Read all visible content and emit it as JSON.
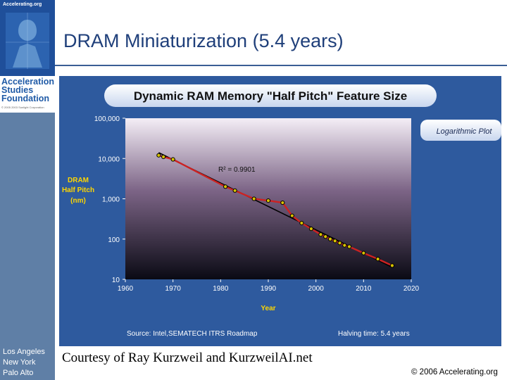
{
  "slide": {
    "title": "DRAM Miniaturization (5.4 years)",
    "courtesy": "Courtesy of Ray Kurzweil and KurzweilAI.net",
    "copyright": "© 2006 Accelerating.org"
  },
  "sidebar": {
    "logo_url": "Accelerating.org",
    "foundation_name": "Acceleration\nStudies\nFoundation",
    "foundation_copyright": "© 2005 2003 Sunlight Corporation",
    "cities": "Los Angeles\nNew York\nPalo Alto"
  },
  "colors": {
    "panel": "#2e5a9e",
    "plot_top": "#f4eef6",
    "plot_bottom": "#0a0a14",
    "data_line": "#cc2222",
    "trend_line": "#000000",
    "point": "#d8c200",
    "sidebar": "#5f7fa6"
  },
  "chart_data": {
    "type": "line",
    "title": "Dynamic RAM Memory \"Half Pitch\" Feature Size",
    "ylabel": "DRAM Half Pitch (nm)",
    "xlabel": "Year",
    "xlim": [
      1960,
      2020
    ],
    "ylim": [
      10,
      100000
    ],
    "y_scale": "log",
    "x_ticks": [
      "1960",
      "1970",
      "1980",
      "1990",
      "2000",
      "2010",
      "2020"
    ],
    "y_ticks": [
      {
        "value": 100000,
        "label": "100,000"
      },
      {
        "value": 10000,
        "label": "10,000"
      },
      {
        "value": 1000,
        "label": "1,000"
      },
      {
        "value": 100,
        "label": "100"
      },
      {
        "value": 10,
        "label": "10"
      }
    ],
    "scale_badge": "Logarithmic Plot",
    "r_squared": "R² = 0.9901",
    "source": "Source: Intel,SEMATECH ITRS Roadmap",
    "halving": "Halving time: 5.4 years",
    "series": [
      {
        "x": [
          1967,
          1968,
          1970,
          1981,
          1983,
          1987,
          1990,
          1993,
          1995,
          1997,
          1999,
          2001,
          2002,
          2003,
          2004,
          2005,
          2006,
          2007,
          2010,
          2013,
          2016
        ],
        "y": [
          12000,
          11000,
          9500,
          2000,
          1600,
          1000,
          900,
          800,
          380,
          250,
          180,
          130,
          115,
          100,
          90,
          80,
          70,
          65,
          45,
          32,
          22
        ]
      }
    ],
    "trend": {
      "x": [
        1967,
        2016
      ],
      "y": [
        14000,
        20
      ]
    }
  }
}
